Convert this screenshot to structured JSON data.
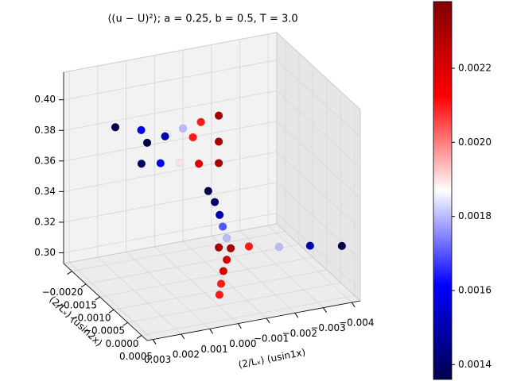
{
  "chart_data": {
    "type": "scatter3d",
    "title": "⟨(u − U)²⟩; a = 0.25, b = 0.5, T = 3.0",
    "xlabel": "(2/Lₓ) (usin1x)",
    "ylabel": "(2/Lₓ) (usin2x)",
    "xlim": [
      0.0032,
      -0.0043
    ],
    "ylim": [
      -0.0023,
      0.0007
    ],
    "zlim": [
      0.293,
      0.418
    ],
    "xticks": [
      0.003,
      0.002,
      0.001,
      {
        "value": 0,
        "label": "0.000"
      },
      {
        "value": -0.001,
        "label": "−0.001"
      },
      {
        "value": -0.002,
        "label": "−0.002"
      },
      {
        "value": -0.003,
        "label": "−0.003"
      },
      {
        "value": -0.004,
        "label": "−0.004"
      }
    ],
    "yticks": [
      {
        "value": -0.002,
        "label": "−0.0020"
      },
      {
        "value": -0.0015,
        "label": "−0.0015"
      },
      {
        "value": -0.001,
        "label": "−0.0010"
      },
      {
        "value": -0.0005,
        "label": "−0.0005"
      },
      {
        "value": 0,
        "label": "0.0000"
      },
      0.0005
    ],
    "zticks": [
      {
        "value": 0.3,
        "label": "0.30"
      },
      0.32,
      0.34,
      0.36,
      0.38,
      {
        "value": 0.4,
        "label": "0.40"
      }
    ],
    "colormap": "seismic",
    "clim": [
      0.00136,
      0.00238
    ],
    "cticks": [
      0.0014,
      0.0016,
      0.0018,
      {
        "value": 0.002,
        "label": "0.0020"
      },
      0.0022
    ],
    "series": [
      {
        "x": [
          0.00285,
          0.00194,
          0.00103,
          0.00012,
          -0.00079
        ],
        "y": [
          -0.0008,
          -0.0008,
          -0.0008,
          -0.0008,
          -0.0008
        ],
        "z": [
          0.406,
          0.401,
          0.395,
          0.39,
          0.384
        ],
        "c": [
          0.00135,
          0.0016,
          0.00185,
          0.0021,
          0.0023
        ]
      },
      {
        "x": [
          0.00173,
          0.0011,
          0.00047,
          -0.00016,
          -0.00079
        ],
        "y": [
          -0.0008,
          -0.0008,
          -0.0008,
          -0.0008,
          -0.0008
        ],
        "z": [
          0.392,
          0.394,
          0.397,
          0.399,
          0.401
        ],
        "c": [
          0.00135,
          0.0015,
          0.0018,
          0.0021,
          0.0023
        ]
      },
      {
        "x": [
          0.00193,
          0.00126,
          0.00058,
          -9e-05,
          -0.00079
        ],
        "y": [
          -0.0008,
          -0.0008,
          -0.0008,
          -0.0008,
          -0.0008
        ],
        "z": [
          0.379,
          0.377,
          0.375,
          0.372,
          0.37
        ],
        "c": [
          0.0014,
          0.0016,
          0.0019,
          0.0022,
          0.0023
        ]
      },
      {
        "x": [
          -0.00042,
          -0.00065,
          -0.00082,
          -0.00093,
          -0.00107
        ],
        "y": [
          -0.0008,
          -0.0008,
          -0.0008,
          -0.0008,
          -0.0008
        ],
        "z": [
          0.353,
          0.345,
          0.336,
          0.328,
          0.32
        ],
        "c": [
          0.00135,
          0.0014,
          0.0015,
          0.0017,
          0.0018
        ]
      },
      {
        "x": [
          9e-05,
          -0.00097,
          -0.00203,
          -0.00312,
          -0.00424
        ],
        "y": [
          0.0001,
          0.0001,
          0.0001,
          0.0001,
          0.0001
        ],
        "z": [
          0.333,
          0.33,
          0.326,
          0.323,
          0.319
        ],
        "c": [
          0.0023,
          0.0021,
          0.0018,
          0.0015,
          0.00135
        ]
      },
      {
        "x": [
          -0.00033,
          -0.00019,
          -7e-05,
          1e-05,
          7e-05
        ],
        "y": [
          0.0001,
          0.0001,
          0.0001,
          0.0001,
          0.0001
        ],
        "z": [
          0.331,
          0.324,
          0.317,
          0.309,
          0.302
        ],
        "c": [
          0.0023,
          0.0022,
          0.0022,
          0.0021,
          0.0021
        ]
      }
    ]
  }
}
